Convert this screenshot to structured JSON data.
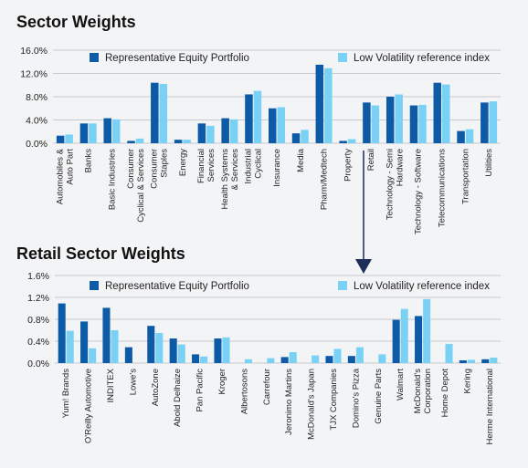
{
  "colors": {
    "portfolio": "#0d5aa7",
    "benchmark": "#79d2f5",
    "grid": "#c9c9c9",
    "arrow": "#1f2d5a",
    "background": "#f3f4f6"
  },
  "chart_data": [
    {
      "type": "bar",
      "title": "Sector Weights",
      "ylim": [
        0,
        16
      ],
      "yticks": [
        "0.0%",
        "4.0%",
        "8.0%",
        "12.0%",
        "16.0%"
      ],
      "grid": true,
      "legend_position": "top",
      "categories": [
        "Automobiles & Auto Part",
        "Banks",
        "Basic Industries",
        "Consumer Cyclical & Services",
        "Consumer Staples",
        "Energy",
        "Financial Services",
        "Health Systems & Services",
        "Industrial Cyclical",
        "Insurance",
        "Media",
        "Pharm/Medtech",
        "Property",
        "Retail",
        "Technology - Semi Hardware",
        "Technology - Software",
        "Telecommunications",
        "Transportation",
        "Utilities"
      ],
      "category_lines": [
        [
          "Automobiles &",
          "Auto Part"
        ],
        [
          "Banks"
        ],
        [
          "Basic Industries"
        ],
        [
          "Consumer",
          "Cyclical & Services"
        ],
        [
          "Consumer",
          "Staples"
        ],
        [
          "Energy"
        ],
        [
          "Financial",
          "Services"
        ],
        [
          "Health Systems",
          "& Services"
        ],
        [
          "Industrial",
          "Cyclical"
        ],
        [
          "Insurance"
        ],
        [
          "Media"
        ],
        [
          "Pharm/Medtech"
        ],
        [
          "Property"
        ],
        [
          "Retail"
        ],
        [
          "Technology - Semi",
          "Hardware"
        ],
        [
          "Technology - Software"
        ],
        [
          "Telecommunications"
        ],
        [
          "Transportation"
        ],
        [
          "Utilities"
        ]
      ],
      "series": [
        {
          "name": "Representative Equity Portfolio",
          "values": [
            1.3,
            3.4,
            4.3,
            0.4,
            10.4,
            0.6,
            3.4,
            4.3,
            8.4,
            6.0,
            1.7,
            13.5,
            0.4,
            7.0,
            8.0,
            6.5,
            10.4,
            2.1,
            7.0
          ]
        },
        {
          "name": "Low Volatility reference index",
          "values": [
            1.5,
            3.4,
            4.1,
            0.8,
            10.2,
            0.6,
            3.0,
            4.1,
            9.0,
            6.2,
            2.3,
            12.9,
            0.7,
            6.5,
            8.4,
            6.6,
            10.1,
            2.4,
            7.2
          ]
        }
      ]
    },
    {
      "type": "bar",
      "title": "Retail Sector Weights",
      "ylim": [
        0,
        1.6
      ],
      "yticks": [
        "0.0%",
        "0.4%",
        "0.8%",
        "1.2%",
        "1.6%"
      ],
      "grid": true,
      "legend_position": "top",
      "categories": [
        "Yum! Brands",
        "O'Reilly Automotive",
        "INDITEX",
        "Lowe's",
        "AutoZone",
        "Abold Delhaize",
        "Pan Pacific",
        "Kroger",
        "Albertosons",
        "Carrefour",
        "Jeronimo Martins",
        "McDonald's Japan",
        "TJX Companies",
        "Domino's Pizza",
        "Genuine Parts",
        "Walmart",
        "McDonald's Corporation",
        "Home Depot",
        "Kering",
        "Herme International"
      ],
      "category_lines": [
        [
          "Yum! Brands"
        ],
        [
          "O'Reilly Automotive"
        ],
        [
          "INDITEX"
        ],
        [
          "Lowe's"
        ],
        [
          "AutoZone"
        ],
        [
          "Abold Delhaize"
        ],
        [
          "Pan Pacific"
        ],
        [
          "Kroger"
        ],
        [
          "Albertosons"
        ],
        [
          "Carrefour"
        ],
        [
          "Jeronimo Martins"
        ],
        [
          "McDonald's Japan"
        ],
        [
          "TJX Companies"
        ],
        [
          "Domino's Pizza"
        ],
        [
          "Genuine Parts"
        ],
        [
          "Walmart"
        ],
        [
          "McDonald's",
          "Corporation"
        ],
        [
          "Home Depot"
        ],
        [
          "Kering"
        ],
        [
          "Herme International"
        ]
      ],
      "series": [
        {
          "name": "Representative Equity Portfolio",
          "values": [
            1.09,
            0.76,
            1.01,
            0.29,
            0.68,
            0.45,
            0.16,
            0.45,
            0.0,
            0.0,
            0.11,
            0.0,
            0.13,
            0.13,
            0.0,
            0.79,
            0.86,
            0.0,
            0.05,
            0.07
          ]
        },
        {
          "name": "Low Volatility reference index",
          "values": [
            0.59,
            0.27,
            0.6,
            0.0,
            0.55,
            0.34,
            0.12,
            0.47,
            0.07,
            0.09,
            0.2,
            0.14,
            0.26,
            0.29,
            0.16,
            0.99,
            1.17,
            0.35,
            0.06,
            0.1
          ]
        }
      ]
    }
  ]
}
